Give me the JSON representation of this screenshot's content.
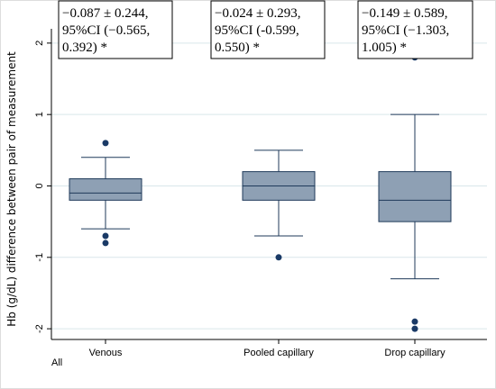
{
  "chart_data": {
    "type": "box",
    "title": "",
    "xlabel": "",
    "ylabel": "Hb (g/dL) difference between pair of measurement",
    "ylim": [
      -2.15,
      2.2
    ],
    "yticks": [
      -2,
      -1,
      0,
      1,
      2
    ],
    "ytick_labels": [
      "-2",
      "-1",
      "0",
      "1",
      "2"
    ],
    "grid": true,
    "footer": "All",
    "colors": {
      "box": "#8ea0b4",
      "outline": "#1f3a5a",
      "outlier": "#1a3a66",
      "grid": "#d9e6ea"
    },
    "categories": [
      "Venous",
      "Pooled capillary",
      "Drop capillary"
    ],
    "boxes": [
      {
        "label": "Venous",
        "whisker_low": -0.6,
        "q1": -0.2,
        "median": -0.1,
        "q3": 0.1,
        "whisker_high": 0.4,
        "outliers": [
          0.6,
          -0.7,
          -0.8
        ]
      },
      {
        "label": "Pooled capillary",
        "whisker_low": -0.7,
        "q1": -0.2,
        "median": 0.0,
        "q3": 0.2,
        "whisker_high": 0.5,
        "outliers": [
          -1.0
        ]
      },
      {
        "label": "Drop capillary",
        "whisker_low": -1.3,
        "q1": -0.5,
        "median": -0.2,
        "q3": 0.2,
        "whisker_high": 1.0,
        "outliers": [
          1.8,
          -1.9,
          -2.0
        ]
      }
    ],
    "annotations": [
      {
        "lines": [
          "−0.087 ± 0.244,",
          "95%CI (−0.565,",
          "0.392) *"
        ]
      },
      {
        "lines": [
          "−0.024 ± 0.293,",
          "95%CI (-0.599,",
          "0.550) *"
        ]
      },
      {
        "lines": [
          "−0.149 ± 0.589,",
          "95%CI (−1.303,",
          "1.005) *"
        ]
      }
    ]
  }
}
